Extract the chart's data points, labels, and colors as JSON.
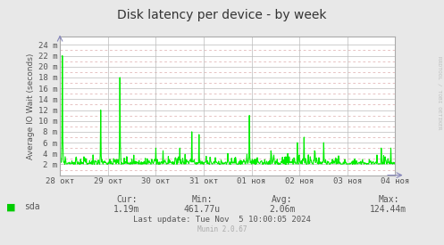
{
  "title": "Disk latency per device - by week",
  "ylabel": "Average IO Wait (seconds)",
  "background_color": "#e8e8e8",
  "plot_bg_color": "#ffffff",
  "grid_color_major": "#bbbbbb",
  "grid_color_minor": "#ddaaaa",
  "line_color": "#00ee00",
  "line_width": 0.8,
  "y_ticks": [
    2,
    4,
    6,
    8,
    10,
    12,
    14,
    16,
    18,
    20,
    22,
    24
  ],
  "y_labels": [
    "2 m",
    "4 m",
    "6 m",
    "8 m",
    "10 m",
    "12 m",
    "14 m",
    "16 m",
    "18 m",
    "20 m",
    "22 m",
    "24 m"
  ],
  "y_minor_ticks": [
    1,
    3,
    5,
    7,
    9,
    11,
    13,
    15,
    17,
    19,
    21,
    23
  ],
  "ylim": [
    0,
    25.5
  ],
  "x_tick_labels": [
    "28 окт",
    "29 окт",
    "30 окт",
    "31 окт",
    "01 ноя",
    "02 ноя",
    "03 ноя",
    "04 ноя"
  ],
  "legend_label": "sda",
  "legend_color": "#00cc00",
  "cur_label": "Cur:",
  "cur_value": "1.19m",
  "min_label": "Min:",
  "min_value": "461.77u",
  "avg_label": "Avg:",
  "avg_value": "2.06m",
  "max_label": "Max:",
  "max_value": "124.44m",
  "last_update": "Last update: Tue Nov  5 10:00:05 2024",
  "munin_version": "Munin 2.0.67",
  "watermark": "RRDTOOL / TOBI OETIKER",
  "title_color": "#333333",
  "text_color": "#555555",
  "axis_color": "#aaaaaa",
  "num_points": 700
}
